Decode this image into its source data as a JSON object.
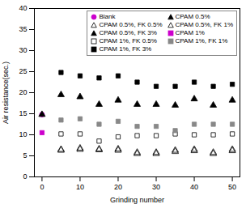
{
  "chart_data": {
    "type": "scatter",
    "xlabel": "Grinding number",
    "ylabel": "Air resistance(sec.)",
    "xlim": [
      -2,
      52
    ],
    "ylim": [
      0,
      40
    ],
    "xticks": [
      0,
      10,
      20,
      30,
      40,
      50
    ],
    "yticks": [
      0,
      5,
      10,
      15,
      20,
      25,
      30,
      35,
      40
    ],
    "legend": "upper right",
    "series": [
      {
        "name": "Blank",
        "color": "#cc00cc",
        "marker": "circle",
        "x": [
          0
        ],
        "values": [
          14.8
        ]
      },
      {
        "name": "CPAM 0.5%",
        "color": "#000000",
        "marker": "triangle",
        "x": [
          0
        ],
        "values": [
          14.8
        ]
      },
      {
        "name": "CPAM 0.5%, FK 0.5%",
        "color": "#000000",
        "marker": "triangle-open",
        "x": [
          5,
          10,
          15,
          20,
          25,
          30,
          35,
          40,
          45,
          50
        ],
        "values": [
          6.3,
          6.5,
          6.4,
          6.3,
          5.5,
          5.5,
          6.0,
          6.2,
          5.5,
          6.2
        ]
      },
      {
        "name": "CPAM 0.5%, FK 1%",
        "color": "#000000",
        "marker": "triangle-open",
        "x": [
          5,
          10,
          15,
          20,
          25,
          30,
          35,
          40,
          45,
          50
        ],
        "values": [
          6.5,
          6.8,
          6.6,
          6.6,
          5.8,
          5.8,
          6.3,
          6.5,
          5.8,
          6.5
        ]
      },
      {
        "name": "CPAM 0.5%, FK 3%",
        "color": "#000000",
        "marker": "triangle",
        "x": [
          5,
          10,
          15,
          20,
          25,
          30,
          35,
          40,
          45,
          50
        ],
        "values": [
          19.5,
          19.0,
          17.2,
          18.2,
          17.2,
          17.2,
          17.0,
          18.5,
          17.0,
          18.2
        ]
      },
      {
        "name": "CPAM 1%",
        "color": "#cc00cc",
        "marker": "square",
        "x": [
          0
        ],
        "values": [
          10.5
        ]
      },
      {
        "name": "CPAM 1%, FK 0.5%",
        "color": "#000000",
        "marker": "square-open",
        "x": [
          5,
          10,
          15,
          20,
          25,
          30,
          35,
          40,
          45,
          50
        ],
        "values": [
          10.2,
          10.2,
          8.5,
          9.5,
          9.8,
          9.8,
          10.2,
          10.0,
          10.0,
          10.2
        ]
      },
      {
        "name": "CPAM 1%, FK 1%",
        "color": "#888888",
        "marker": "square",
        "x": [
          5,
          10,
          15,
          20,
          25,
          30,
          35,
          40,
          45,
          50
        ],
        "values": [
          13.5,
          13.8,
          12.5,
          13.2,
          12.0,
          12.0,
          11.0,
          12.5,
          12.5,
          12.5
        ]
      },
      {
        "name": "CPAM 1%, FK 3%",
        "color": "#000000",
        "marker": "square",
        "x": [
          5,
          10,
          15,
          20,
          25,
          30,
          35,
          40,
          45,
          50
        ],
        "values": [
          24.8,
          24.0,
          23.5,
          24.0,
          22.5,
          21.5,
          21.5,
          22.5,
          21.5,
          22.0
        ]
      }
    ]
  }
}
